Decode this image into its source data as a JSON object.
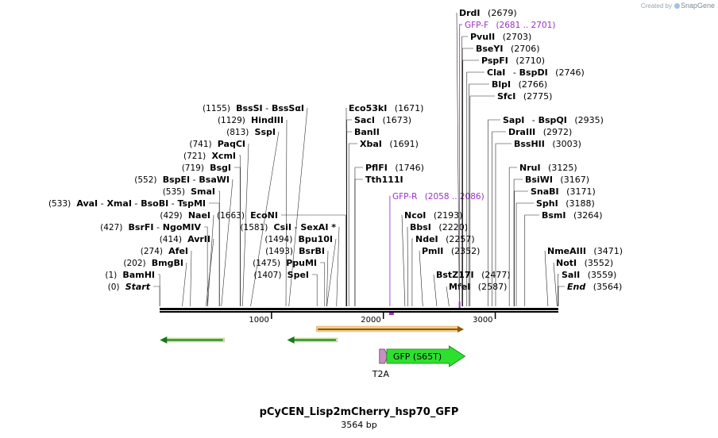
{
  "credit": {
    "prefix": "Created by",
    "brand": "SnapGene",
    "icon": "snapgene-logo-icon"
  },
  "map": {
    "name": "pCyCEN_Lisp2mCherry_hsp70_GFP",
    "length_label": "3564 bp",
    "length": 3564,
    "ticks": [
      {
        "pos": 1000,
        "label": "1000"
      },
      {
        "pos": 2000,
        "label": "2000"
      },
      {
        "pos": 3000,
        "label": "3000"
      }
    ],
    "colors": {
      "line": "#000000",
      "primer": "#9b30c8",
      "gfp": "#2ee02e",
      "orf": "#f2cc8f",
      "orf_border": "#8a5a00"
    }
  },
  "left_labels": [
    {
      "id": "start",
      "pos": 1,
      "text": "(0)  Start",
      "parts": [
        {
          "t": "(0)",
          "s": "n"
        },
        {
          "t": "Start",
          "s": "bi"
        }
      ]
    },
    {
      "id": "bamhi",
      "pos": 1,
      "parts": [
        {
          "t": "(1)",
          "s": "n"
        },
        {
          "t": "BamHI",
          "s": "b"
        }
      ]
    },
    {
      "id": "bmgbi",
      "pos": 202,
      "parts": [
        {
          "t": "(202)",
          "s": "n"
        },
        {
          "t": "BmgBI",
          "s": "b"
        }
      ]
    },
    {
      "id": "afei",
      "pos": 274,
      "parts": [
        {
          "t": "(274)",
          "s": "n"
        },
        {
          "t": "AfeI",
          "s": "b"
        }
      ]
    },
    {
      "id": "avrii",
      "pos": 414,
      "parts": [
        {
          "t": "(414)",
          "s": "n"
        },
        {
          "t": "AvrII",
          "s": "b"
        }
      ]
    },
    {
      "id": "bsrfi",
      "pos": 427,
      "parts": [
        {
          "t": "(427)",
          "s": "n"
        },
        {
          "t": "BsrFI",
          "s": "b"
        },
        {
          "t": "-",
          "s": "n"
        },
        {
          "t": "NgoMIV",
          "s": "b"
        }
      ]
    },
    {
      "id": "naei",
      "pos": 429,
      "parts": [
        {
          "t": "(429)",
          "s": "n"
        },
        {
          "t": "NaeI",
          "s": "b"
        }
      ]
    },
    {
      "id": "avai",
      "pos": 533,
      "parts": [
        {
          "t": "(533)",
          "s": "n"
        },
        {
          "t": "AvaI",
          "s": "b"
        },
        {
          "t": "-",
          "s": "n"
        },
        {
          "t": "XmaI",
          "s": "b"
        },
        {
          "t": "-",
          "s": "n"
        },
        {
          "t": "BsoBI",
          "s": "b"
        },
        {
          "t": "-",
          "s": "n"
        },
        {
          "t": "TspMI",
          "s": "b"
        }
      ]
    },
    {
      "id": "smai",
      "pos": 535,
      "parts": [
        {
          "t": "(535)",
          "s": "n"
        },
        {
          "t": "SmaI",
          "s": "b"
        }
      ]
    },
    {
      "id": "bspei",
      "pos": 552,
      "parts": [
        {
          "t": "(552)",
          "s": "n"
        },
        {
          "t": "BspEI",
          "s": "b"
        },
        {
          "t": "-",
          "s": "n"
        },
        {
          "t": "BsaWI",
          "s": "b"
        }
      ]
    },
    {
      "id": "bsgi",
      "pos": 719,
      "parts": [
        {
          "t": "(719)",
          "s": "n"
        },
        {
          "t": "BsgI",
          "s": "b"
        }
      ]
    },
    {
      "id": "xcmi",
      "pos": 721,
      "parts": [
        {
          "t": "(721)",
          "s": "n"
        },
        {
          "t": "XcmI",
          "s": "b"
        }
      ]
    },
    {
      "id": "paqci",
      "pos": 741,
      "parts": [
        {
          "t": "(741)",
          "s": "n"
        },
        {
          "t": "PaqCI",
          "s": "b"
        }
      ]
    },
    {
      "id": "sspi",
      "pos": 813,
      "parts": [
        {
          "t": "(813)",
          "s": "n"
        },
        {
          "t": "SspI",
          "s": "b"
        }
      ]
    },
    {
      "id": "hindiii",
      "pos": 1129,
      "parts": [
        {
          "t": "(1129)",
          "s": "n"
        },
        {
          "t": "HindIII",
          "s": "b"
        }
      ]
    },
    {
      "id": "bsssi",
      "pos": 1155,
      "parts": [
        {
          "t": "(1155)",
          "s": "n"
        },
        {
          "t": "BssSI",
          "s": "b"
        },
        {
          "t": "-",
          "s": "n"
        },
        {
          "t": "BssSαI",
          "s": "b"
        }
      ]
    },
    {
      "id": "spei",
      "pos": 1407,
      "parts": [
        {
          "t": "(1407)",
          "s": "n"
        },
        {
          "t": "SpeI",
          "s": "b"
        }
      ]
    },
    {
      "id": "ppumi",
      "pos": 1475,
      "parts": [
        {
          "t": "(1475)",
          "s": "n"
        },
        {
          "t": "PpuMI",
          "s": "b"
        }
      ]
    },
    {
      "id": "bsrbi",
      "pos": 1493,
      "parts": [
        {
          "t": "(1493)",
          "s": "n"
        },
        {
          "t": "BsrBI",
          "s": "b"
        }
      ]
    },
    {
      "id": "bpu10i",
      "pos": 1494,
      "parts": [
        {
          "t": "(1494)",
          "s": "n"
        },
        {
          "t": "Bpu10I",
          "s": "b"
        }
      ]
    },
    {
      "id": "csii",
      "pos": 1581,
      "parts": [
        {
          "t": "(1581)",
          "s": "n"
        },
        {
          "t": "CsiI",
          "s": "b"
        },
        {
          "t": "-",
          "s": "n"
        },
        {
          "t": "SexAI *",
          "s": "b"
        }
      ]
    },
    {
      "id": "econi",
      "pos": 1663,
      "parts": [
        {
          "t": "(1663)",
          "s": "n"
        },
        {
          "t": "EcoNI",
          "s": "b"
        }
      ]
    }
  ],
  "right_labels": [
    {
      "id": "eco53ki",
      "pos": 1671,
      "parts": [
        {
          "t": "Eco53kI",
          "s": "b"
        },
        {
          "t": "(1671)",
          "s": "n"
        }
      ]
    },
    {
      "id": "saci",
      "pos": 1673,
      "parts": [
        {
          "t": "SacI",
          "s": "b"
        },
        {
          "t": "(1673)",
          "s": "n"
        }
      ]
    },
    {
      "id": "banii",
      "pos": 1673,
      "parts": [
        {
          "t": "BanII",
          "s": "b"
        }
      ]
    },
    {
      "id": "xbai",
      "pos": 1691,
      "parts": [
        {
          "t": "XbaI",
          "s": "b"
        },
        {
          "t": "(1691)",
          "s": "n"
        }
      ]
    },
    {
      "id": "pflfi",
      "pos": 1746,
      "parts": [
        {
          "t": "PflFI",
          "s": "b"
        },
        {
          "t": "(1746)",
          "s": "n"
        }
      ]
    },
    {
      "id": "tth111i",
      "pos": 1746,
      "parts": [
        {
          "t": "Tth111I",
          "s": "b"
        }
      ]
    },
    {
      "id": "gfpr",
      "pos": 2058,
      "primer": true,
      "parts": [
        {
          "t": "GFP-R",
          "s": "p"
        },
        {
          "t": "(2058 .. 2086)",
          "s": "p"
        }
      ]
    },
    {
      "id": "ncoi",
      "pos": 2193,
      "parts": [
        {
          "t": "NcoI",
          "s": "b"
        },
        {
          "t": "(2193)",
          "s": "n"
        }
      ]
    },
    {
      "id": "bbsi",
      "pos": 2220,
      "parts": [
        {
          "t": "BbsI",
          "s": "b"
        },
        {
          "t": "(2220)",
          "s": "n"
        }
      ]
    },
    {
      "id": "ndei",
      "pos": 2257,
      "parts": [
        {
          "t": "NdeI",
          "s": "b"
        },
        {
          "t": "(2257)",
          "s": "n"
        }
      ]
    },
    {
      "id": "pmli",
      "pos": 2352,
      "parts": [
        {
          "t": "PmlI",
          "s": "b"
        },
        {
          "t": "(2352)",
          "s": "n"
        }
      ]
    },
    {
      "id": "bstz17i",
      "pos": 2477,
      "parts": [
        {
          "t": "BstZ17I",
          "s": "b"
        },
        {
          "t": "(2477)",
          "s": "n"
        }
      ]
    },
    {
      "id": "mfei",
      "pos": 2587,
      "parts": [
        {
          "t": "MfeI",
          "s": "b"
        },
        {
          "t": "(2587)",
          "s": "n"
        }
      ]
    },
    {
      "id": "drdi",
      "pos": 2679,
      "parts": [
        {
          "t": "DrdI",
          "s": "b"
        },
        {
          "t": "(2679)",
          "s": "n"
        }
      ]
    },
    {
      "id": "gfpf",
      "pos": 2681,
      "primer": true,
      "parts": [
        {
          "t": "GFP-F",
          "s": "p"
        },
        {
          "t": "(2681 .. 2701)",
          "s": "p"
        }
      ]
    },
    {
      "id": "pvuii",
      "pos": 2703,
      "parts": [
        {
          "t": "PvuII",
          "s": "b"
        },
        {
          "t": "(2703)",
          "s": "n"
        }
      ]
    },
    {
      "id": "bseyi",
      "pos": 2706,
      "parts": [
        {
          "t": "BseYI",
          "s": "b"
        },
        {
          "t": "(2706)",
          "s": "n"
        }
      ]
    },
    {
      "id": "pspfi",
      "pos": 2710,
      "parts": [
        {
          "t": "PspFI",
          "s": "b"
        },
        {
          "t": "(2710)",
          "s": "n"
        }
      ]
    },
    {
      "id": "clai",
      "pos": 2746,
      "parts": [
        {
          "t": "ClaI",
          "s": "b"
        },
        {
          "t": "-",
          "s": "n"
        },
        {
          "t": "BspDI",
          "s": "b"
        },
        {
          "t": "(2746)",
          "s": "n"
        }
      ]
    },
    {
      "id": "blpi",
      "pos": 2766,
      "parts": [
        {
          "t": "BlpI",
          "s": "b"
        },
        {
          "t": "(2766)",
          "s": "n"
        }
      ]
    },
    {
      "id": "sfci",
      "pos": 2775,
      "parts": [
        {
          "t": "SfcI",
          "s": "b"
        },
        {
          "t": "(2775)",
          "s": "n"
        }
      ]
    },
    {
      "id": "sapi",
      "pos": 2935,
      "parts": [
        {
          "t": "SapI",
          "s": "b"
        },
        {
          "t": "-",
          "s": "n"
        },
        {
          "t": "BspQI",
          "s": "b"
        },
        {
          "t": "(2935)",
          "s": "n"
        }
      ]
    },
    {
      "id": "draiii",
      "pos": 2972,
      "parts": [
        {
          "t": "DraIII",
          "s": "b"
        },
        {
          "t": "(2972)",
          "s": "n"
        }
      ]
    },
    {
      "id": "bsshii",
      "pos": 3003,
      "parts": [
        {
          "t": "BssHII",
          "s": "b"
        },
        {
          "t": "(3003)",
          "s": "n"
        }
      ]
    },
    {
      "id": "drui",
      "pos": 3125,
      "parts": [
        {
          "t": "NruI",
          "s": "b"
        },
        {
          "t": "(3125)",
          "s": "n"
        }
      ]
    },
    {
      "id": "bsiwi",
      "pos": 3167,
      "parts": [
        {
          "t": "BsiWI",
          "s": "b"
        },
        {
          "t": "(3167)",
          "s": "n"
        }
      ]
    },
    {
      "id": "snabi",
      "pos": 3171,
      "parts": [
        {
          "t": "SnaBI",
          "s": "b"
        },
        {
          "t": "(3171)",
          "s": "n"
        }
      ]
    },
    {
      "id": "sphi",
      "pos": 3188,
      "parts": [
        {
          "t": "SphI",
          "s": "b"
        },
        {
          "t": "(3188)",
          "s": "n"
        }
      ]
    },
    {
      "id": "bsmi",
      "pos": 3264,
      "parts": [
        {
          "t": "BsmI",
          "s": "b"
        },
        {
          "t": "(3264)",
          "s": "n"
        }
      ]
    },
    {
      "id": "nmeaiii",
      "pos": 3471,
      "parts": [
        {
          "t": "NmeAIII",
          "s": "b"
        },
        {
          "t": "(3471)",
          "s": "n"
        }
      ]
    },
    {
      "id": "noti",
      "pos": 3552,
      "parts": [
        {
          "t": "NotI",
          "s": "b"
        },
        {
          "t": "(3552)",
          "s": "n"
        }
      ]
    },
    {
      "id": "sali",
      "pos": 3559,
      "parts": [
        {
          "t": "SalI",
          "s": "b"
        },
        {
          "t": "(3559)",
          "s": "n"
        }
      ]
    },
    {
      "id": "end",
      "pos": 3564,
      "parts": [
        {
          "t": "End",
          "s": "bi"
        },
        {
          "t": "(3564)",
          "s": "n"
        }
      ]
    }
  ],
  "features": [
    {
      "id": "orf-arrow-1",
      "type": "orf",
      "start": 2,
      "end": 580,
      "direction": "reverse"
    },
    {
      "id": "orf-arrow-2",
      "type": "orf",
      "start": 1140,
      "end": 1590,
      "direction": "reverse"
    },
    {
      "id": "orf-bar",
      "type": "orf-thick",
      "start": 1400,
      "end": 2720,
      "direction": "forward"
    },
    {
      "id": "t2a",
      "type": "feature",
      "label": "T2A",
      "start": 1965,
      "end": 2025,
      "direction": "forward"
    },
    {
      "id": "gfp",
      "type": "feature",
      "label": "GFP (S65T)",
      "start": 2030,
      "end": 2730,
      "direction": "forward"
    }
  ]
}
